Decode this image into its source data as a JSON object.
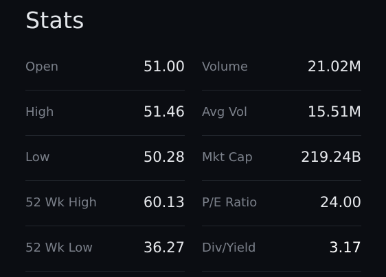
{
  "page": {
    "title": "Stats"
  },
  "stats": {
    "left": [
      {
        "label": "Open",
        "value": "51.00"
      },
      {
        "label": "High",
        "value": "51.46"
      },
      {
        "label": "Low",
        "value": "50.28"
      },
      {
        "label": "52 Wk High",
        "value": "60.13"
      },
      {
        "label": "52 Wk Low",
        "value": "36.27"
      }
    ],
    "right": [
      {
        "label": "Volume",
        "value": "21.02M"
      },
      {
        "label": "Avg Vol",
        "value": "15.51M"
      },
      {
        "label": "Mkt Cap",
        "value": "219.24B"
      },
      {
        "label": "P/E Ratio",
        "value": "24.00"
      },
      {
        "label": "Div/Yield",
        "value": "3.17"
      }
    ]
  },
  "colors": {
    "background": "#0b0d12",
    "label": "#7b808a",
    "value": "#e6e8ec",
    "divider": "#23272e"
  }
}
